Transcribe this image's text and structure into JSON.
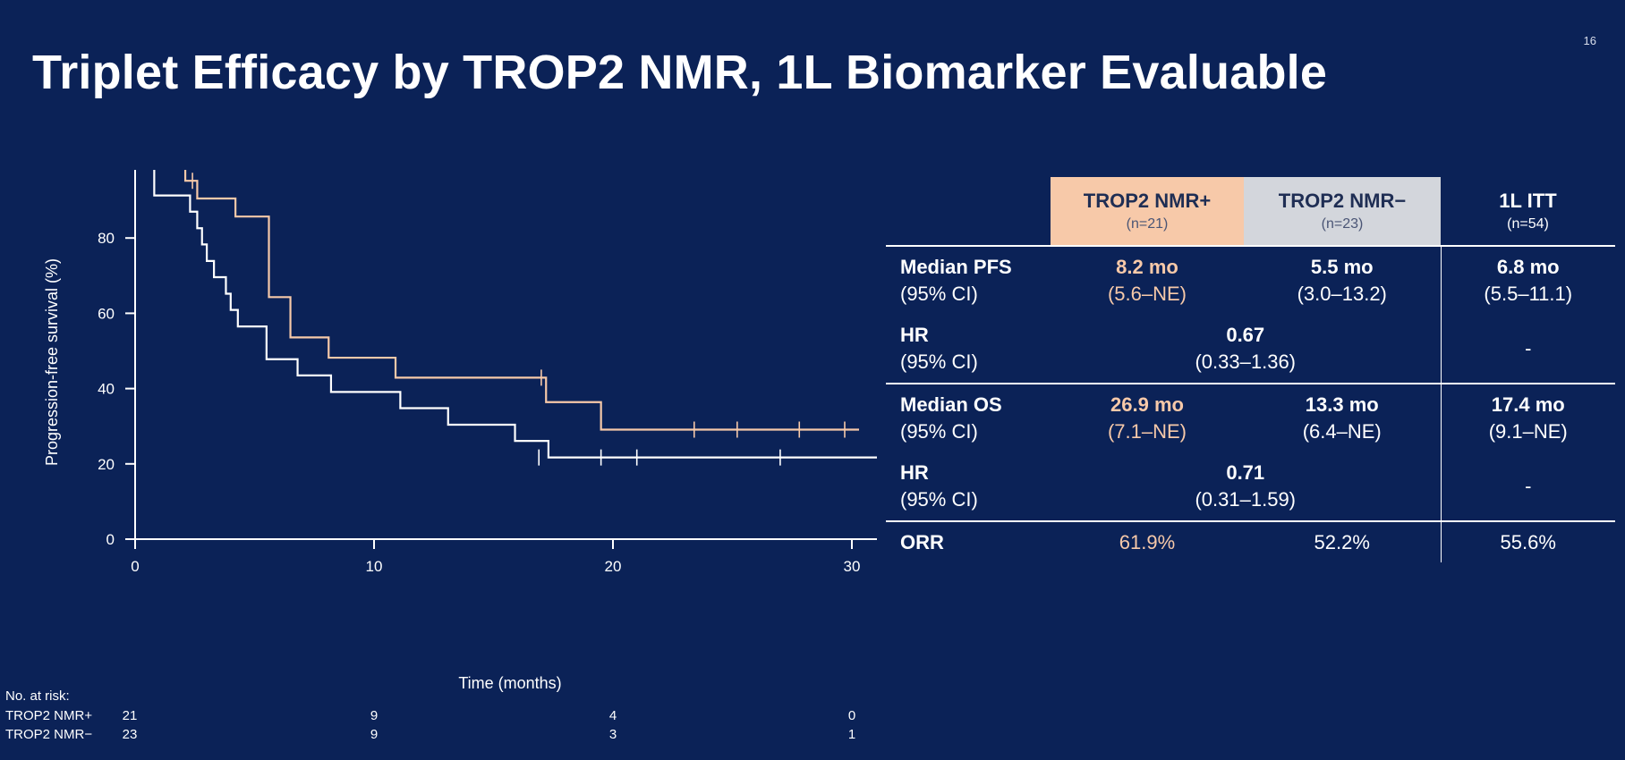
{
  "page": {
    "number": "16",
    "title": "Triplet Efficacy by TROP2 NMR, 1L Biomarker Evaluable"
  },
  "colors": {
    "background": "#0b2257",
    "nmr_positive": "#f7c9a9",
    "nmr_negative": "#ffffff",
    "header_negative": "#d3d6dc"
  },
  "chart_data": {
    "type": "line",
    "subtype": "kaplan-meier step",
    "xlabel": "Time (months)",
    "ylabel": "Progression-free survival (%)",
    "xlim": [
      0,
      32
    ],
    "ylim": [
      0,
      100
    ],
    "x_ticks": [
      0,
      10,
      20,
      30
    ],
    "y_ticks": [
      0,
      20,
      40,
      60,
      80,
      100
    ],
    "grid": false,
    "series": [
      {
        "name": "TROP2 NMR+",
        "color": "#f7c9a9",
        "steps": [
          [
            0,
            100
          ],
          [
            2.1,
            95.2
          ],
          [
            2.6,
            90.5
          ],
          [
            4.2,
            85.7
          ],
          [
            5.6,
            64.3
          ],
          [
            6.5,
            53.6
          ],
          [
            8.1,
            48.2
          ],
          [
            10.9,
            42.9
          ],
          [
            17.2,
            36.4
          ],
          [
            19.5,
            29.1
          ],
          [
            30.3,
            29.1
          ]
        ],
        "censored": [
          [
            2.4,
            95.2
          ],
          [
            17.0,
            42.9
          ],
          [
            23.4,
            29.1
          ],
          [
            25.2,
            29.1
          ],
          [
            27.8,
            29.1
          ],
          [
            29.7,
            29.1
          ]
        ]
      },
      {
        "name": "TROP2 NMR−",
        "color": "#ffffff",
        "steps": [
          [
            0,
            100
          ],
          [
            0.8,
            91.3
          ],
          [
            2.3,
            87.0
          ],
          [
            2.6,
            82.6
          ],
          [
            2.8,
            78.3
          ],
          [
            3.0,
            73.9
          ],
          [
            3.3,
            69.6
          ],
          [
            3.8,
            65.2
          ],
          [
            4.0,
            60.9
          ],
          [
            4.3,
            56.5
          ],
          [
            5.5,
            47.8
          ],
          [
            6.8,
            43.5
          ],
          [
            8.2,
            39.1
          ],
          [
            11.1,
            34.8
          ],
          [
            13.1,
            30.4
          ],
          [
            15.9,
            26.1
          ],
          [
            17.3,
            21.7
          ],
          [
            31.1,
            21.7
          ],
          [
            31.1,
            0
          ]
        ],
        "censored": [
          [
            16.9,
            21.7
          ],
          [
            19.5,
            21.7
          ],
          [
            21.0,
            21.7
          ],
          [
            27.0,
            21.7
          ]
        ]
      }
    ],
    "risk_table": {
      "title": "No. at risk:",
      "times": [
        0,
        10,
        20,
        30
      ],
      "rows": [
        {
          "label": "TROP2 NMR+",
          "values": [
            "21",
            "9",
            "4",
            "0"
          ]
        },
        {
          "label": "TROP2 NMR−",
          "values": [
            "23",
            "9",
            "3",
            "1"
          ]
        }
      ]
    }
  },
  "table": {
    "headers": [
      {
        "label": "TROP2 NMR+",
        "n": "(n=21)"
      },
      {
        "label": "TROP2 NMR−",
        "n": "(n=23)"
      },
      {
        "label": "1L ITT",
        "n": "(n=54)"
      }
    ],
    "median_pfs": {
      "label": "Median PFS",
      "ci_label": "(95% CI)",
      "pos": "8.2 mo",
      "pos_ci": "(5.6–NE)",
      "neg": "5.5 mo",
      "neg_ci": "(3.0–13.2)",
      "itt": "6.8 mo",
      "itt_ci": "(5.5–11.1)"
    },
    "hr_pfs": {
      "label": "HR",
      "ci_label": "(95% CI)",
      "value": "0.67",
      "ci": "(0.33–1.36)",
      "itt": "-"
    },
    "median_os": {
      "label": "Median OS",
      "ci_label": "(95% CI)",
      "pos": "26.9 mo",
      "pos_ci": "(7.1–NE)",
      "neg": "13.3 mo",
      "neg_ci": "(6.4–NE)",
      "itt": "17.4 mo",
      "itt_ci": "(9.1–NE)"
    },
    "hr_os": {
      "label": "HR",
      "ci_label": "(95% CI)",
      "value": "0.71",
      "ci": "(0.31–1.59)",
      "itt": "-"
    },
    "orr": {
      "label": "ORR",
      "pos": "61.9%",
      "neg": "52.2%",
      "itt": "55.6%"
    }
  }
}
